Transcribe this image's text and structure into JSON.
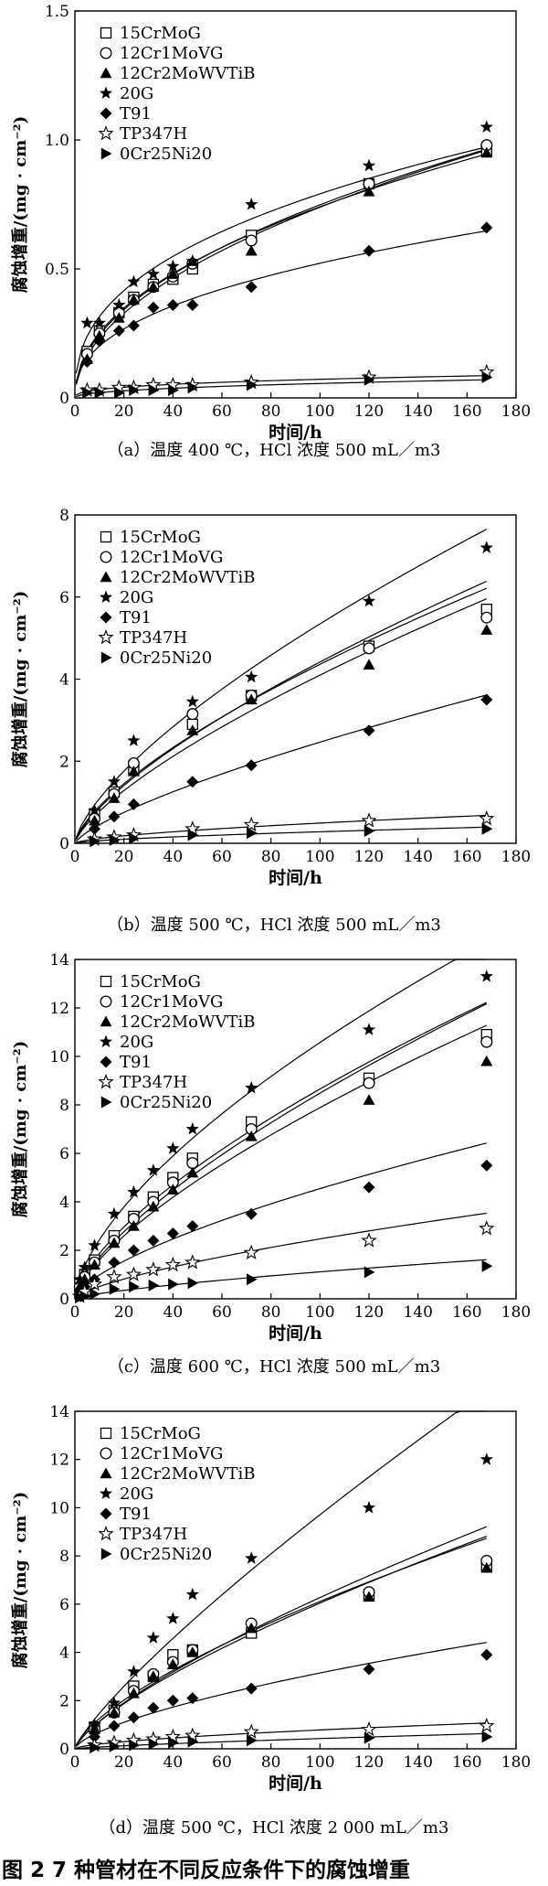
{
  "figure_caption": "图 2   7 种管材在不同反应条件下的腐蚀增重",
  "legend": [
    "15CrMoG",
    "12Cr1MoVG",
    "12Cr2MoWVTiB",
    "20G",
    "T91",
    "TP347H",
    "0Cr25Ni20"
  ],
  "marker_icons": [
    "open-square-icon",
    "open-circle-icon",
    "filled-triangle-icon",
    "filled-star-icon",
    "filled-diamond-icon",
    "open-star-icon",
    "filled-right-triangle-icon"
  ],
  "chart_data": [
    {
      "type": "scatter",
      "caption": "（a）温度 400 ℃，HCl 浓度 500 mL／m3",
      "xlabel": "时间/h",
      "ylabel": "腐蚀增重/(mg · cm⁻²)",
      "xlim": [
        0,
        180
      ],
      "ylim": [
        0,
        1.5
      ],
      "xticks": [
        0,
        20,
        40,
        60,
        80,
        100,
        120,
        140,
        160,
        180
      ],
      "yticks": [
        0,
        0.5,
        1.0,
        1.5
      ],
      "ytick_labels": [
        "0",
        "0.5",
        "1.0",
        "1.5"
      ],
      "x": [
        5,
        10,
        18,
        24,
        32,
        40,
        48,
        72,
        120,
        168
      ],
      "series": [
        {
          "name": "15CrMoG",
          "values": [
            0.18,
            0.26,
            0.33,
            0.39,
            0.44,
            0.46,
            0.5,
            0.63,
            0.83,
            0.96
          ]
        },
        {
          "name": "12Cr1MoVG",
          "values": [
            0.17,
            0.25,
            0.33,
            0.38,
            0.43,
            0.47,
            0.52,
            0.61,
            0.83,
            0.98
          ]
        },
        {
          "name": "12Cr2MoWVTiB",
          "values": [
            0.15,
            0.24,
            0.31,
            0.38,
            0.43,
            0.48,
            0.53,
            0.57,
            0.8,
            0.95
          ]
        },
        {
          "name": "20G",
          "values": [
            0.29,
            0.29,
            0.36,
            0.45,
            0.48,
            0.51,
            0.53,
            0.75,
            0.9,
            1.05
          ]
        },
        {
          "name": "T91",
          "values": [
            0.14,
            0.22,
            0.26,
            0.28,
            0.35,
            0.36,
            0.36,
            0.43,
            0.57,
            0.66
          ]
        },
        {
          "name": "TP347H",
          "values": [
            0.03,
            0.03,
            0.04,
            0.04,
            0.05,
            0.05,
            0.05,
            0.06,
            0.08,
            0.1
          ]
        },
        {
          "name": "0Cr25Ni20",
          "values": [
            0.02,
            0.02,
            0.02,
            0.03,
            0.03,
            0.03,
            0.04,
            0.05,
            0.07,
            0.08
          ]
        }
      ]
    },
    {
      "type": "scatter",
      "caption": "（b）温度 500 ℃，HCl 浓度 500 mL／m3",
      "xlabel": "时间/h",
      "ylabel": "腐蚀增重/(mg · cm⁻²)",
      "xlim": [
        0,
        180
      ],
      "ylim": [
        0,
        8
      ],
      "xticks": [
        0,
        20,
        40,
        60,
        80,
        100,
        120,
        140,
        160,
        180
      ],
      "yticks": [
        0,
        2,
        4,
        6,
        8
      ],
      "ytick_labels": [
        "0",
        "2",
        "4",
        "6",
        "8"
      ],
      "x": [
        8,
        16,
        24,
        48,
        72,
        120,
        168
      ],
      "series": [
        {
          "name": "15CrMoG",
          "values": [
            0.7,
            1.25,
            1.8,
            2.9,
            3.6,
            4.8,
            5.7
          ]
        },
        {
          "name": "12Cr1MoVG",
          "values": [
            0.6,
            1.2,
            1.95,
            3.15,
            3.6,
            4.75,
            5.5
          ]
        },
        {
          "name": "12Cr2MoWVTiB",
          "values": [
            0.55,
            1.1,
            1.75,
            2.75,
            3.5,
            4.35,
            5.2
          ]
        },
        {
          "name": "20G",
          "values": [
            0.8,
            1.5,
            2.5,
            3.45,
            4.05,
            5.9,
            7.2
          ]
        },
        {
          "name": "T91",
          "values": [
            0.35,
            0.65,
            0.95,
            1.5,
            1.9,
            2.75,
            3.5
          ]
        },
        {
          "name": "TP347H",
          "values": [
            0.1,
            0.15,
            0.2,
            0.35,
            0.45,
            0.55,
            0.6
          ]
        },
        {
          "name": "0Cr25Ni20",
          "values": [
            0.05,
            0.08,
            0.12,
            0.2,
            0.25,
            0.3,
            0.35
          ]
        }
      ]
    },
    {
      "type": "scatter",
      "caption": "（c）温度 600 ℃，HCl 浓度 500 mL／m3",
      "xlabel": "时间/h",
      "ylabel": "腐蚀增重/(mg · cm⁻²)",
      "xlim": [
        0,
        180
      ],
      "ylim": [
        0,
        14
      ],
      "xticks": [
        0,
        20,
        40,
        60,
        80,
        100,
        120,
        140,
        160,
        180
      ],
      "yticks": [
        0,
        2,
        4,
        6,
        8,
        10,
        12,
        14
      ],
      "ytick_labels": [
        "0",
        "2",
        "4",
        "6",
        "8",
        "10",
        "12",
        "14"
      ],
      "x": [
        2,
        4,
        8,
        16,
        24,
        32,
        40,
        48,
        72,
        120,
        168
      ],
      "series": [
        {
          "name": "15CrMoG",
          "values": [
            0.6,
            1.0,
            1.6,
            2.6,
            3.4,
            4.2,
            5.0,
            5.8,
            7.3,
            9.1,
            10.9
          ]
        },
        {
          "name": "12Cr1MoVG",
          "values": [
            0.5,
            0.9,
            1.5,
            2.4,
            3.3,
            4.0,
            4.8,
            5.6,
            7.0,
            8.9,
            10.6
          ]
        },
        {
          "name": "12Cr2MoWVTiB",
          "values": [
            0.5,
            0.8,
            1.4,
            2.3,
            3.0,
            3.8,
            4.5,
            5.2,
            6.7,
            8.2,
            9.8
          ]
        },
        {
          "name": "20G",
          "values": [
            0.8,
            1.3,
            2.2,
            3.5,
            4.4,
            5.3,
            6.2,
            7.0,
            8.7,
            11.1,
            13.3
          ]
        },
        {
          "name": "T91",
          "values": [
            0.3,
            0.5,
            0.8,
            1.5,
            2.0,
            2.4,
            2.7,
            3.0,
            3.5,
            4.6,
            5.5
          ]
        },
        {
          "name": "TP347H",
          "values": [
            0.1,
            0.3,
            0.6,
            0.9,
            1.0,
            1.2,
            1.4,
            1.5,
            1.9,
            2.4,
            2.9
          ]
        },
        {
          "name": "0Cr25Ni20",
          "values": [
            0.05,
            0.1,
            0.2,
            0.4,
            0.5,
            0.55,
            0.6,
            0.65,
            0.8,
            1.1,
            1.35
          ]
        }
      ]
    },
    {
      "type": "scatter",
      "caption": "（d）温度 500 ℃，HCl 浓度 2 000 mL／m3",
      "xlabel": "时间/h",
      "ylabel": "腐蚀增重/(mg · cm⁻²)",
      "xlim": [
        0,
        180
      ],
      "ylim": [
        0,
        14
      ],
      "xticks": [
        0,
        20,
        40,
        60,
        80,
        100,
        120,
        140,
        160,
        180
      ],
      "yticks": [
        0,
        2,
        4,
        6,
        8,
        10,
        12,
        14
      ],
      "ytick_labels": [
        "0",
        "2",
        "4",
        "6",
        "8",
        "10",
        "12",
        "14"
      ],
      "x": [
        8,
        16,
        24,
        32,
        40,
        48,
        72,
        120,
        168
      ],
      "series": [
        {
          "name": "15CrMoG",
          "values": [
            0.9,
            1.6,
            2.6,
            3.0,
            3.9,
            4.1,
            4.8,
            6.4,
            7.6
          ]
        },
        {
          "name": "12Cr1MoVG",
          "values": [
            0.8,
            1.5,
            2.4,
            3.1,
            3.6,
            4.1,
            5.2,
            6.5,
            7.8
          ]
        },
        {
          "name": "12Cr2MoWVTiB",
          "values": [
            0.8,
            1.5,
            2.3,
            3.0,
            3.5,
            4.0,
            5.0,
            6.3,
            7.5
          ]
        },
        {
          "name": "20G",
          "values": [
            1.0,
            1.9,
            3.2,
            4.6,
            5.4,
            6.4,
            7.9,
            10.0,
            12.0
          ]
        },
        {
          "name": "T91",
          "values": [
            0.5,
            0.95,
            1.3,
            1.7,
            2.0,
            2.1,
            2.5,
            3.3,
            3.9
          ]
        },
        {
          "name": "TP347H",
          "values": [
            0.15,
            0.25,
            0.35,
            0.4,
            0.5,
            0.55,
            0.7,
            0.8,
            0.95
          ]
        },
        {
          "name": "0Cr25Ni20",
          "values": [
            0.05,
            0.1,
            0.15,
            0.2,
            0.25,
            0.3,
            0.35,
            0.45,
            0.5
          ]
        }
      ]
    }
  ]
}
